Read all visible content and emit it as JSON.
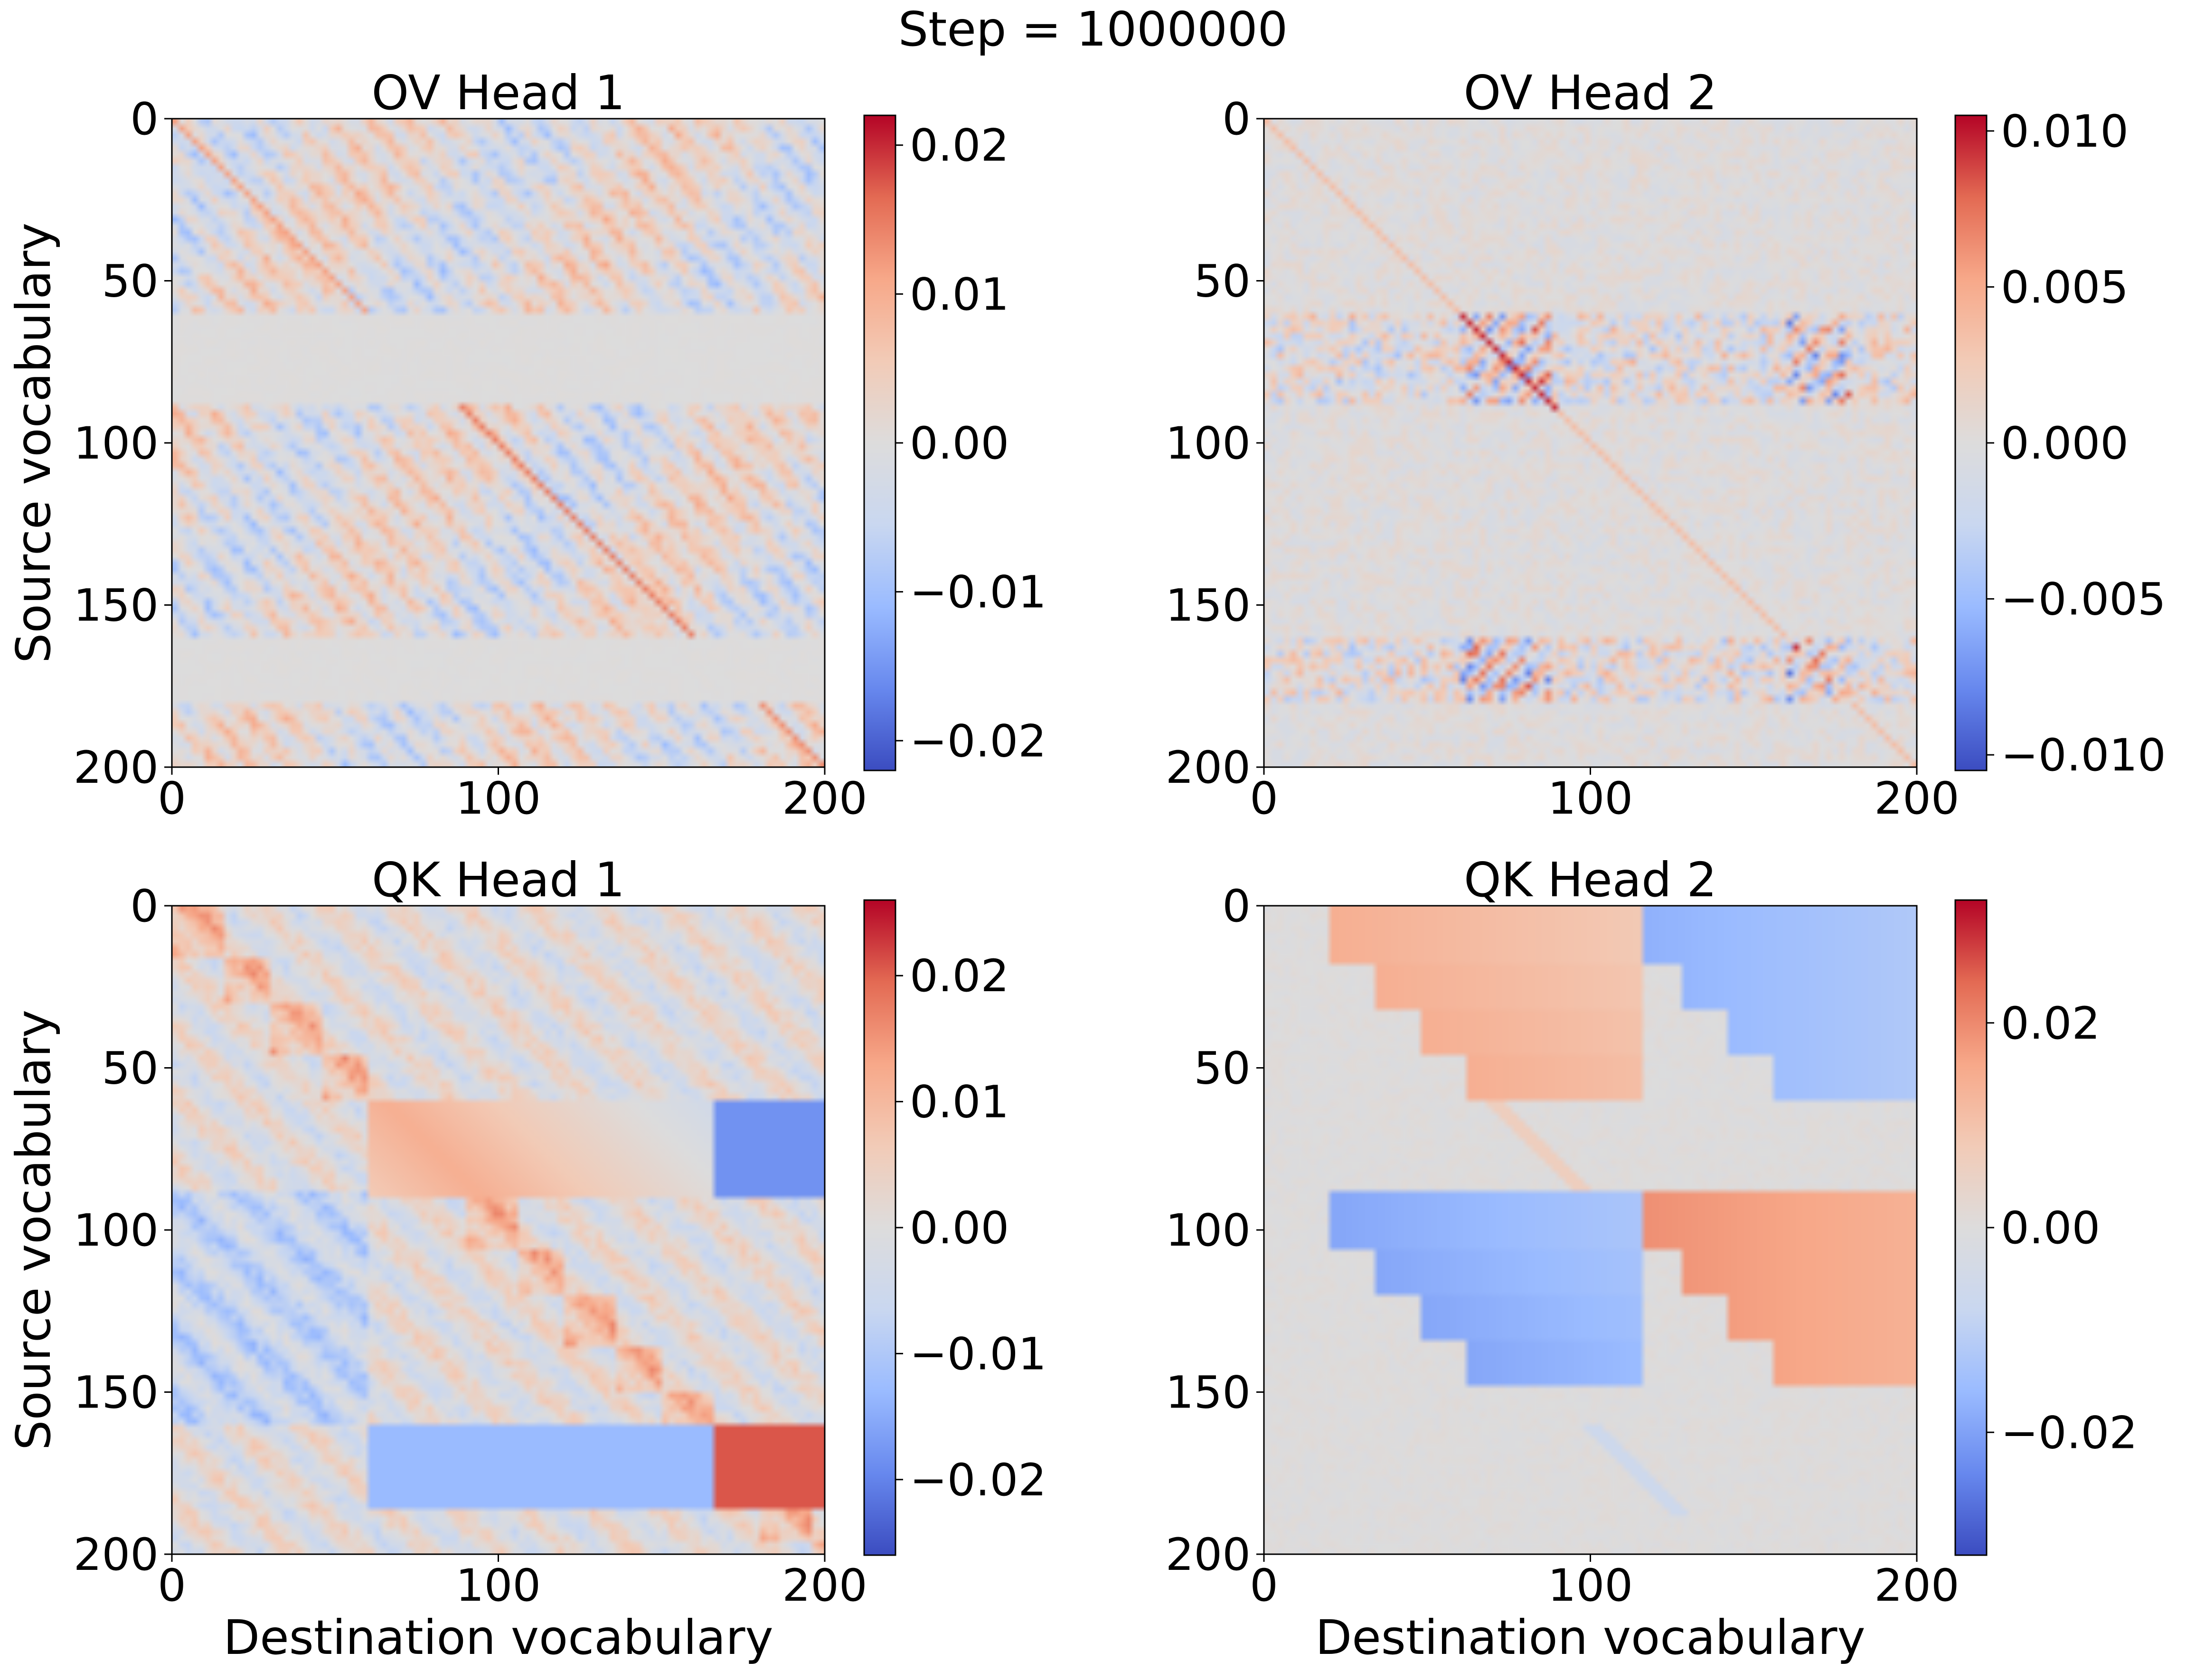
{
  "figure": {
    "suptitle": "Step = 1000000"
  },
  "colormap": {
    "name": "coolwarm",
    "stops": [
      "#3b4cc0",
      "#6788ee",
      "#9abbff",
      "#c9d7f0",
      "#dddcdc",
      "#f2cbb7",
      "#f7a889",
      "#e36a53",
      "#b40426"
    ]
  },
  "chart_data": [
    {
      "type": "heatmap",
      "title": "OV Head 1",
      "xlabel": "",
      "ylabel": "Source vocabulary",
      "xlim": [
        0,
        200
      ],
      "ylim": [
        0,
        200
      ],
      "xticks": [
        "0",
        "100",
        "200"
      ],
      "yticks": [
        "0",
        "50",
        "100",
        "150",
        "200"
      ],
      "vmin": -0.022,
      "vmax": 0.022,
      "colorbar_ticks": [
        {
          "value": 0.02,
          "label": "0.02"
        },
        {
          "value": 0.01,
          "label": "0.01"
        },
        {
          "value": 0.0,
          "label": "0.00"
        },
        {
          "value": -0.01,
          "label": "−0.01"
        },
        {
          "value": -0.02,
          "label": "−0.02"
        }
      ]
    },
    {
      "type": "heatmap",
      "title": "OV Head 2",
      "xlabel": "",
      "ylabel": "",
      "xlim": [
        0,
        200
      ],
      "ylim": [
        0,
        200
      ],
      "xticks": [
        "0",
        "100",
        "200"
      ],
      "yticks": [
        "0",
        "50",
        "100",
        "150",
        "200"
      ],
      "vmin": -0.0105,
      "vmax": 0.0105,
      "colorbar_ticks": [
        {
          "value": 0.01,
          "label": "0.010"
        },
        {
          "value": 0.005,
          "label": "0.005"
        },
        {
          "value": 0.0,
          "label": "0.000"
        },
        {
          "value": -0.005,
          "label": "−0.005"
        },
        {
          "value": -0.01,
          "label": "−0.010"
        }
      ]
    },
    {
      "type": "heatmap",
      "title": "QK Head 1",
      "xlabel": "Destination vocabulary",
      "ylabel": "Source vocabulary",
      "xlim": [
        0,
        200
      ],
      "ylim": [
        0,
        200
      ],
      "xticks": [
        "0",
        "100",
        "200"
      ],
      "yticks": [
        "0",
        "50",
        "100",
        "150",
        "200"
      ],
      "vmin": -0.026,
      "vmax": 0.026,
      "colorbar_ticks": [
        {
          "value": 0.02,
          "label": "0.02"
        },
        {
          "value": 0.01,
          "label": "0.01"
        },
        {
          "value": 0.0,
          "label": "0.00"
        },
        {
          "value": -0.01,
          "label": "−0.01"
        },
        {
          "value": -0.02,
          "label": "−0.02"
        }
      ]
    },
    {
      "type": "heatmap",
      "title": "QK Head 2",
      "xlabel": "Destination vocabulary",
      "ylabel": "",
      "xlim": [
        0,
        200
      ],
      "ylim": [
        0,
        200
      ],
      "xticks": [
        "0",
        "100",
        "200"
      ],
      "yticks": [
        "0",
        "50",
        "100",
        "150",
        "200"
      ],
      "vmin": -0.032,
      "vmax": 0.032,
      "colorbar_ticks": [
        {
          "value": 0.02,
          "label": "0.02"
        },
        {
          "value": 0.0,
          "label": "0.00"
        },
        {
          "value": -0.02,
          "label": "−0.02"
        }
      ]
    }
  ]
}
